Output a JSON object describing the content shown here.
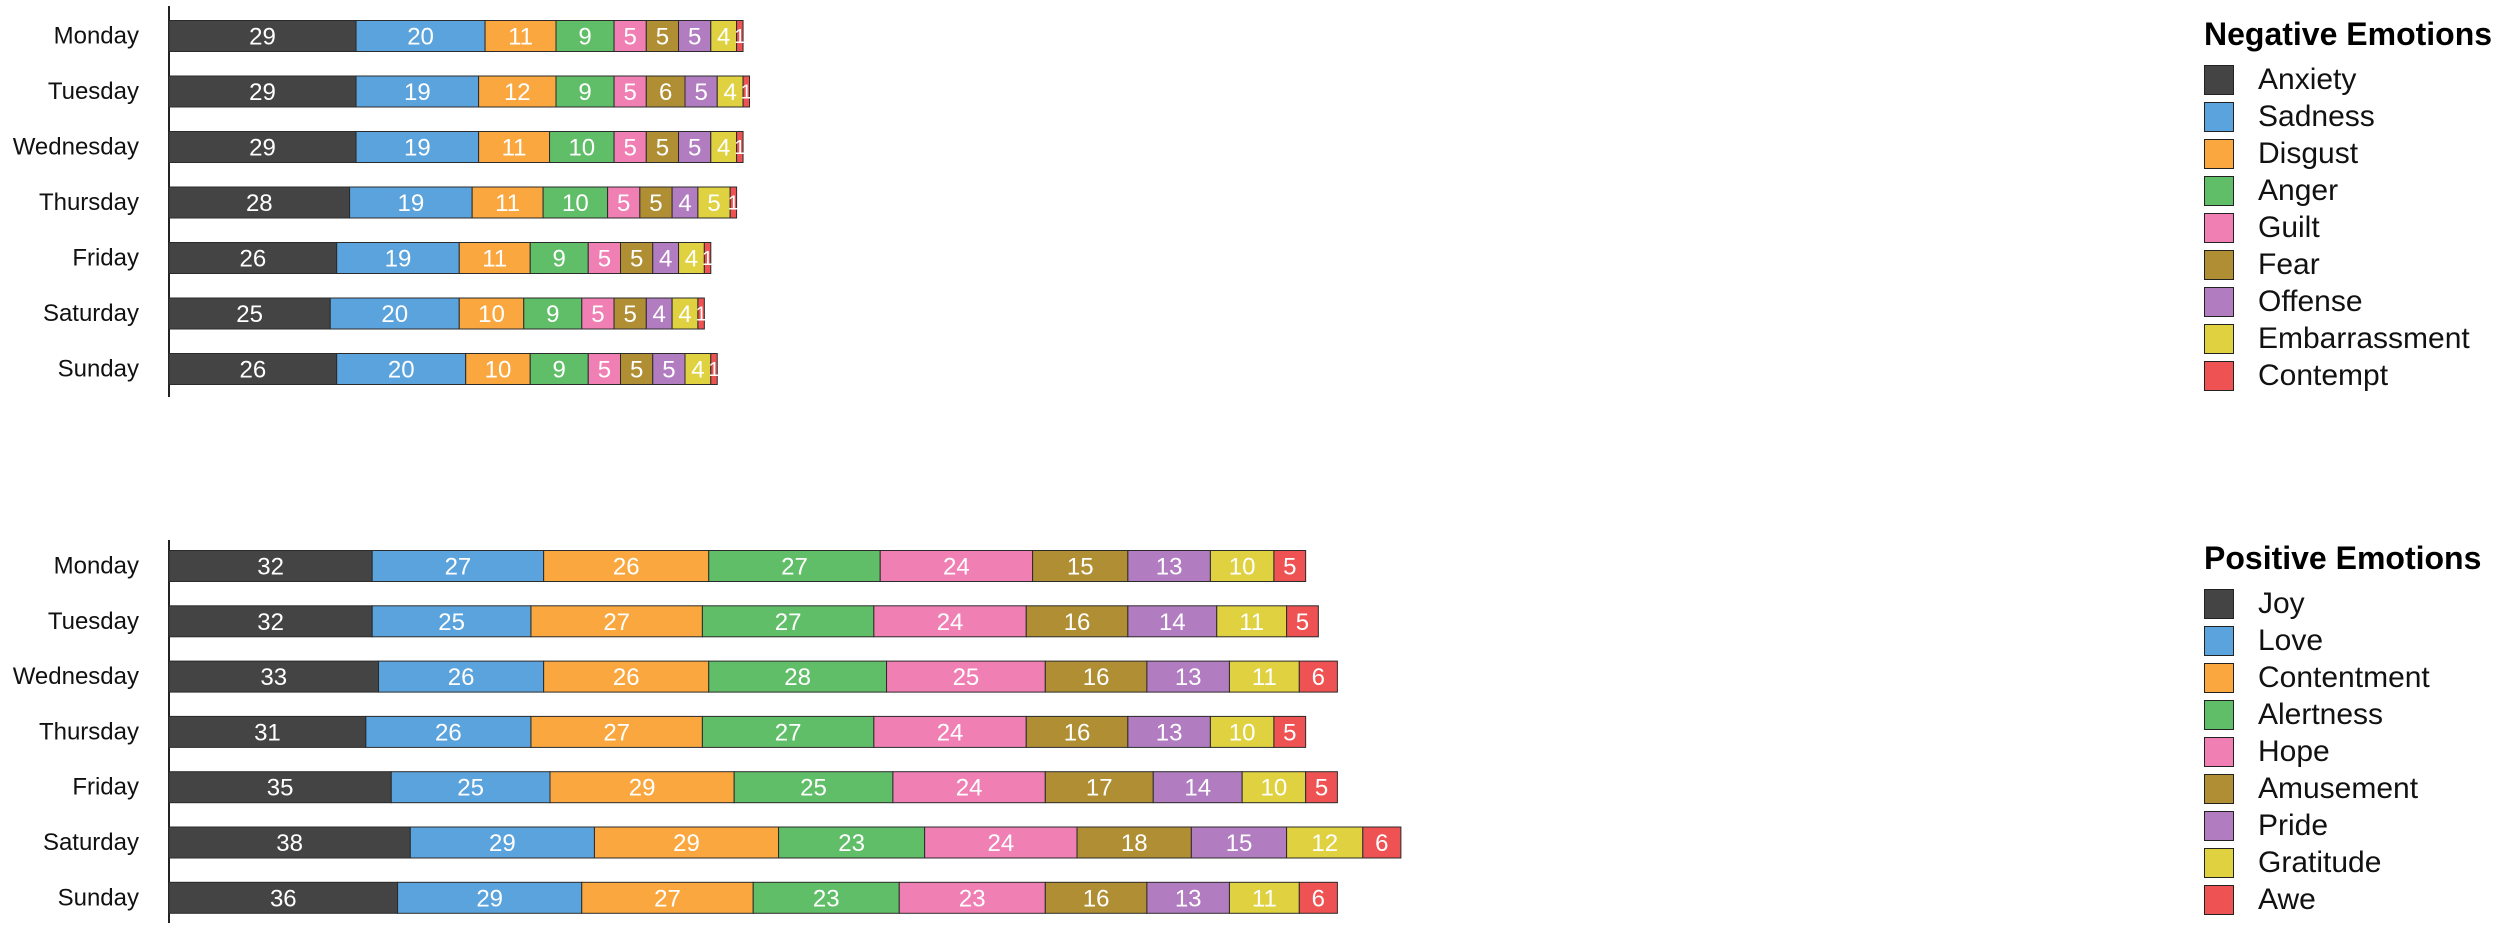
{
  "colors": [
    "#444444",
    "#5ba3dc",
    "#f9a73e",
    "#5fbe67",
    "#f07fb4",
    "#b08f34",
    "#b27cc1",
    "#dfd13f",
    "#ee5253"
  ],
  "chart_data": [
    {
      "type": "bar",
      "orientation": "horizontal",
      "stacked": true,
      "title": "",
      "categories": [
        "Monday",
        "Tuesday",
        "Wednesday",
        "Thursday",
        "Friday",
        "Saturday",
        "Sunday"
      ],
      "legend_title": "Negative Emotions",
      "legend_placement": "right",
      "series": [
        {
          "name": "Anxiety",
          "values": [
            29,
            29,
            29,
            28,
            26,
            25,
            26
          ]
        },
        {
          "name": "Sadness",
          "values": [
            20,
            19,
            19,
            19,
            19,
            20,
            20
          ]
        },
        {
          "name": "Disgust",
          "values": [
            11,
            12,
            11,
            11,
            11,
            10,
            10
          ]
        },
        {
          "name": "Anger",
          "values": [
            9,
            9,
            10,
            10,
            9,
            9,
            9
          ]
        },
        {
          "name": "Guilt",
          "values": [
            5,
            5,
            5,
            5,
            5,
            5,
            5
          ]
        },
        {
          "name": "Fear",
          "values": [
            5,
            6,
            5,
            5,
            5,
            5,
            5
          ]
        },
        {
          "name": "Offense",
          "values": [
            5,
            5,
            5,
            4,
            4,
            4,
            5
          ]
        },
        {
          "name": "Embarrassment",
          "values": [
            4,
            4,
            4,
            5,
            4,
            4,
            4
          ]
        },
        {
          "name": "Contempt",
          "values": [
            1,
            1,
            1,
            1,
            1,
            1,
            1
          ]
        }
      ]
    },
    {
      "type": "bar",
      "orientation": "horizontal",
      "stacked": true,
      "title": "",
      "categories": [
        "Monday",
        "Tuesday",
        "Wednesday",
        "Thursday",
        "Friday",
        "Saturday",
        "Sunday"
      ],
      "legend_title": "Positive Emotions",
      "legend_placement": "right",
      "series": [
        {
          "name": "Joy",
          "values": [
            32,
            32,
            33,
            31,
            35,
            38,
            36
          ]
        },
        {
          "name": "Love",
          "values": [
            27,
            25,
            26,
            26,
            25,
            29,
            29
          ]
        },
        {
          "name": "Contentment",
          "values": [
            26,
            27,
            26,
            27,
            29,
            29,
            27
          ]
        },
        {
          "name": "Alertness",
          "values": [
            27,
            27,
            28,
            27,
            25,
            23,
            23
          ]
        },
        {
          "name": "Hope",
          "values": [
            24,
            24,
            25,
            24,
            24,
            24,
            23
          ]
        },
        {
          "name": "Amusement",
          "values": [
            15,
            16,
            16,
            16,
            17,
            18,
            16
          ]
        },
        {
          "name": "Pride",
          "values": [
            13,
            14,
            13,
            13,
            14,
            15,
            13
          ]
        },
        {
          "name": "Gratitude",
          "values": [
            10,
            11,
            11,
            10,
            10,
            12,
            11
          ]
        },
        {
          "name": "Awe",
          "values": [
            5,
            5,
            6,
            5,
            5,
            6,
            6
          ]
        }
      ]
    }
  ]
}
